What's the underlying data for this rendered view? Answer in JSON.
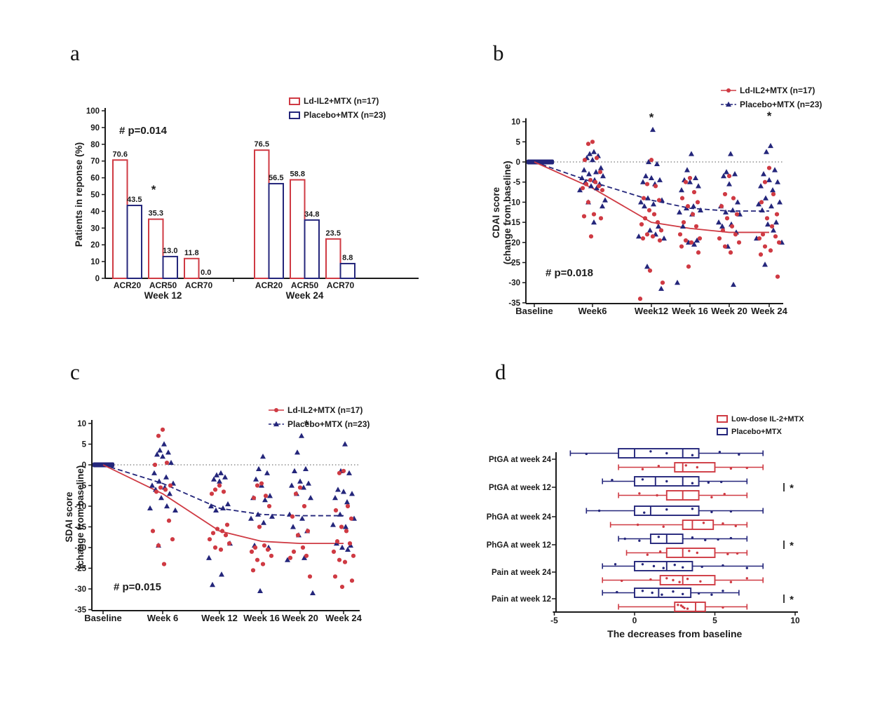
{
  "page": {
    "background": "#ffffff"
  },
  "colors": {
    "red": "#cf3a43",
    "navy": "#24267b",
    "dotted": "#8f8f8f",
    "text": "#1b1b1b"
  },
  "panel_letters": {
    "a": "a",
    "b": "b",
    "c": "c",
    "d": "d"
  },
  "chart_data": [
    {
      "id": "a",
      "type": "bar",
      "ylabel": "Patients in reponse (%)",
      "ylim": [
        0,
        100
      ],
      "yticks": [
        0,
        10,
        20,
        30,
        40,
        50,
        60,
        70,
        80,
        90,
        100
      ],
      "annotation": "# p=0.014",
      "star_symbol": "*",
      "star_at": {
        "group": "Week 12",
        "category": "ACR50"
      },
      "legend": [
        {
          "label": "Ld-IL2+MTX (n=17)",
          "series": "red"
        },
        {
          "label": "Placebo+MTX (n=23)",
          "series": "blue"
        }
      ],
      "groups": [
        {
          "label": "Week 12",
          "categories": [
            "ACR20",
            "ACR50",
            "ACR70"
          ],
          "series": [
            {
              "name": "Ld-IL2+MTX (n=17)",
              "values": [
                70.6,
                35.3,
                11.8
              ],
              "labels": [
                "70.6",
                "35.3",
                "11.8"
              ]
            },
            {
              "name": "Placebo+MTX (n=23)",
              "values": [
                43.5,
                13.0,
                0.0
              ],
              "labels": [
                "43.5",
                "13.0",
                "0.0"
              ]
            }
          ]
        },
        {
          "label": "Week 24",
          "categories": [
            "ACR20",
            "ACR50",
            "ACR70"
          ],
          "series": [
            {
              "name": "Ld-IL2+MTX (n=17)",
              "values": [
                76.5,
                58.8,
                23.5
              ],
              "labels": [
                "76.5",
                "58.8",
                "23.5"
              ]
            },
            {
              "name": "Placebo+MTX (n=23)",
              "values": [
                56.5,
                34.8,
                8.8
              ],
              "labels": [
                "56.5",
                "34.8",
                "8.8"
              ]
            }
          ]
        }
      ]
    },
    {
      "id": "b",
      "type": "scatter",
      "ylabel_lines": [
        "CDAI score",
        "(change from baseline)"
      ],
      "ylim": [
        -35,
        10
      ],
      "yticks": [
        10,
        5,
        0,
        -5,
        -10,
        -15,
        -20,
        -25,
        -30,
        -35
      ],
      "xlabels": [
        "Baseline",
        "Week6",
        "Week12",
        "Week 16",
        "Week 20",
        "Week 24"
      ],
      "annotation": "# p=0.018",
      "star_symbol": "*",
      "stars_at": [
        "Week12",
        "Week 24"
      ],
      "baseline_value": 0,
      "legend": [
        {
          "label": "Ld-IL2+MTX (n=17)",
          "series": "red"
        },
        {
          "label": "Placebo+MTX (n=23)",
          "series": "blue"
        }
      ],
      "trend": {
        "red": [
          0,
          -6.5,
          -15,
          -16.5,
          -17.5,
          -17.5
        ],
        "blue": [
          0,
          -5,
          -9.5,
          -11.5,
          -12.2,
          -12.2
        ]
      },
      "points": {
        "red": [
          [
            5,
            4.5,
            1,
            0.5,
            -2.5,
            -4.5,
            -5,
            -5.5,
            -6,
            -6.5,
            -7,
            -10,
            -13,
            -13.5,
            -14,
            -18.5
          ],
          [
            0.5,
            -5.5,
            -6,
            -9,
            -9.5,
            -12,
            -13,
            -14,
            -15,
            -15.5,
            -17,
            -18,
            -18.5,
            -19,
            -19.5,
            -27,
            -30,
            -34
          ],
          [
            -4,
            -5,
            -7.5,
            -9,
            -10,
            -11,
            -13,
            -15,
            -16,
            -18,
            -19,
            -19.5,
            -20,
            -21,
            -22.5,
            -26
          ],
          [
            -3.5,
            -8,
            -9,
            -11,
            -13,
            -14,
            -16,
            -17,
            -18,
            -19,
            -20,
            -21,
            -22.5
          ],
          [
            -1.5,
            -5,
            -8,
            -10,
            -13,
            -14,
            -16,
            -18,
            -18.5,
            -19,
            -20,
            -21,
            -22,
            -23,
            -28.5
          ]
        ],
        "blue": [
          [
            2.5,
            2,
            1.5,
            1,
            0.5,
            -1.5,
            -2,
            -2.5,
            -3,
            -3.5,
            -4,
            -4.5,
            -5,
            -5.5,
            -6,
            -6.5,
            -7,
            -9.5,
            -10,
            -11,
            -15
          ],
          [
            8,
            0,
            -0.5,
            -3.5,
            -4,
            -4.5,
            -5,
            -5.5,
            -9,
            -9.5,
            -10,
            -10.5,
            -11,
            -16,
            -17,
            -18,
            -18.5,
            -19,
            -26,
            -31.5
          ],
          [
            2,
            -2,
            -4,
            -4.5,
            -5,
            -6,
            -7,
            -11,
            -11.5,
            -12,
            -12.5,
            -13,
            -16,
            -19.5,
            -20,
            -20.5,
            -30
          ],
          [
            2,
            -2.5,
            -3,
            -3.5,
            -5.5,
            -10,
            -11,
            -12,
            -12.5,
            -13,
            -15,
            -15.5,
            -16,
            -17.5,
            -21,
            -30.5
          ],
          [
            4,
            2.5,
            -2,
            -3,
            -4.5,
            -5,
            -6,
            -7,
            -9,
            -10,
            -10.5,
            -11,
            -12,
            -15,
            -15.5,
            -17,
            -19,
            -20,
            -25.5
          ]
        ]
      }
    },
    {
      "id": "c",
      "type": "scatter",
      "ylabel_lines": [
        "SDAI score",
        "(change from baseline)"
      ],
      "ylim": [
        -35,
        10
      ],
      "yticks": [
        10,
        5,
        0,
        -5,
        -10,
        -15,
        -20,
        -25,
        -30,
        -35
      ],
      "xlabels": [
        "Baseline",
        "Week 6",
        "Week 12",
        "Week 16",
        "Week 20",
        "Week 24"
      ],
      "annotation": "# p=0.015",
      "star_symbol": "*",
      "stars_at": [
        "Week 20"
      ],
      "baseline_value": 0,
      "legend": [
        {
          "label": "Ld-IL2+MTX (n=17)",
          "series": "red"
        },
        {
          "label": "Placebo+MTX (n=23)",
          "series": "blue"
        }
      ],
      "trend": {
        "red": [
          0,
          -7,
          -16,
          -18.5,
          -19,
          -19
        ],
        "blue": [
          0,
          -4.5,
          -10.5,
          -12,
          -12.3,
          -12.3
        ]
      },
      "points": {
        "red": [
          [
            8.5,
            7,
            0.5,
            0,
            -5,
            -5.5,
            -6,
            -6.5,
            -13.5,
            -16,
            -18,
            -19.5,
            -24
          ],
          [
            -5,
            -6,
            -6.5,
            -7,
            -14.5,
            -15.5,
            -16,
            -16.5,
            -17,
            -18,
            -19,
            -20,
            -20.5
          ],
          [
            -4.5,
            -5,
            -7.5,
            -8,
            -10,
            -15,
            -19.5,
            -20,
            -20.5,
            -21,
            -22,
            -23,
            -24,
            -25.5
          ],
          [
            -5.5,
            -7,
            -10,
            -12.5,
            -16,
            -17,
            -20,
            -21,
            -22,
            -22.5,
            -27
          ],
          [
            -1.5,
            -2,
            -10,
            -11,
            -13,
            -15,
            -16,
            -18.5,
            -19,
            -21,
            -22,
            -23,
            -23.5,
            -27,
            -28,
            -29.5
          ]
        ],
        "blue": [
          [
            5,
            3.5,
            3,
            2.5,
            2,
            0.5,
            -2,
            -3,
            -4,
            -4.5,
            -5,
            -5.5,
            -6,
            -7,
            -8,
            -10,
            -10.5,
            -11,
            -19.5
          ],
          [
            -2,
            -2.5,
            -3,
            -3.5,
            -4,
            -9.5,
            -10,
            -10.5,
            -11,
            -19,
            -22.5,
            -26.5,
            -29
          ],
          [
            2,
            -1,
            -2,
            -3.5,
            -5,
            -7.5,
            -8,
            -8.5,
            -12,
            -12.5,
            -13,
            -14,
            -19.5,
            -20,
            -30.5
          ],
          [
            7,
            3,
            -1,
            -1.5,
            -4,
            -4.5,
            -5,
            -5.5,
            -7,
            -8,
            -12,
            -13,
            -15,
            -16,
            -17,
            -22.5,
            -23,
            -31
          ],
          [
            5,
            -1.5,
            -2,
            -6,
            -6.5,
            -7,
            -8,
            -9,
            -12,
            -13,
            -14.5,
            -15,
            -19,
            -19.5,
            -20,
            -20.5
          ]
        ]
      }
    },
    {
      "id": "d",
      "type": "box",
      "xlabel": "The decreases from baseline",
      "xlim": [
        -5,
        10
      ],
      "xticks": [
        -5,
        0,
        5,
        10
      ],
      "star_symbol": "*",
      "legend": [
        {
          "label": "Low-dose IL-2+MTX",
          "series": "red"
        },
        {
          "label": "Placebo+MTX",
          "series": "blue"
        }
      ],
      "rows": [
        {
          "label": "PtGA at week 24",
          "star": false,
          "blue": {
            "lo": -4,
            "q1": -1,
            "med": 0,
            "med2": 3,
            "q3": 4,
            "hi": 8,
            "pts": [
              1,
              2,
              3.6,
              5.3,
              6.5,
              -3
            ]
          },
          "red": {
            "lo": -1,
            "q1": 2.5,
            "med": 3,
            "q3": 5,
            "hi": 8,
            "pts": [
              3.2,
              3.9,
              0.5,
              1.5,
              6,
              7
            ]
          }
        },
        {
          "label": "PtGA at week 12",
          "star": true,
          "blue": {
            "lo": -2,
            "q1": 0,
            "med": 1.3,
            "med2": 3,
            "q3": 4,
            "hi": 7,
            "pts": [
              0.5,
              2,
              3.6,
              -1.4,
              4.6,
              5.4
            ]
          },
          "red": {
            "lo": -1,
            "q1": 2,
            "med": 3,
            "q3": 4,
            "hi": 7,
            "pts": [
              0.3,
              1.4,
              4.8,
              5.6
            ]
          }
        },
        {
          "label": "PhGA at week 24",
          "star": false,
          "blue": {
            "lo": -3,
            "q1": 0,
            "med": 1,
            "q3": 4,
            "hi": 8,
            "pts": [
              3.6,
              -2.2,
              0.6,
              2,
              4.8,
              6
            ]
          },
          "red": {
            "lo": -1.5,
            "q1": 3,
            "med": 3.6,
            "q3": 4.9,
            "hi": 7,
            "pts": [
              4.3,
              0.2,
              1.8,
              5.5,
              6.3
            ]
          }
        },
        {
          "label": "PhGA at week 12",
          "star": true,
          "blue": {
            "lo": -1,
            "q1": 1,
            "med": 2,
            "q3": 3,
            "hi": 7,
            "pts": [
              1.5,
              -0.6,
              0.3,
              3.6,
              4.4,
              5.2,
              6
            ]
          },
          "red": {
            "lo": -0.5,
            "q1": 2,
            "med": 3,
            "q3": 5,
            "hi": 7,
            "pts": [
              3.4,
              3.9,
              0.8,
              1.6,
              5.8,
              6.4
            ]
          }
        },
        {
          "label": "Pain at week 24",
          "star": false,
          "blue": {
            "lo": -2,
            "q1": 0,
            "med": 2,
            "q3": 3.6,
            "hi": 8,
            "pts": [
              0.5,
              1.2,
              1.8,
              2.5,
              3,
              4.2,
              5.5,
              7,
              -1.2
            ]
          },
          "red": {
            "lo": -2,
            "q1": 1.6,
            "med": 3,
            "q3": 5,
            "hi": 8,
            "pts": [
              2,
              2.4,
              2.8,
              3.3,
              4.1,
              -0.8,
              1,
              6,
              7
            ]
          }
        },
        {
          "label": "Pain at week 12",
          "star": true,
          "blue": {
            "lo": -2,
            "q1": 0,
            "med": 1.5,
            "q3": 3.5,
            "hi": 6.5,
            "pts": [
              0.5,
              1.1,
              1.7,
              2.4,
              3,
              4,
              -1.1,
              4.8,
              5.5
            ]
          },
          "red": {
            "lo": -1,
            "q1": 2.5,
            "med": 3.8,
            "q3": 4.4,
            "hi": 7,
            "pts": [
              2.7,
              3,
              3.3,
              2.9,
              3.1,
              5.5
            ]
          }
        }
      ]
    }
  ]
}
